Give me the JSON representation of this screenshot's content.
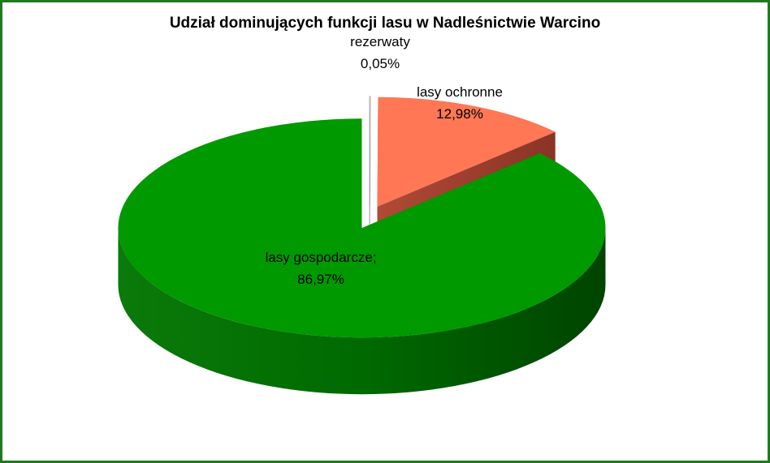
{
  "chart_data": {
    "type": "pie3d",
    "title": "Udział dominujących funkcji lasu w Nadleśnictwie Warcino",
    "categories": [
      "rezerwaty",
      "lasy ochronne",
      "lasy gospodarcze;"
    ],
    "values": [
      0.05,
      12.98,
      86.97
    ],
    "value_labels": [
      "0,05%",
      "12,98%",
      "86,97%"
    ],
    "colors": [
      "#ffffff",
      "#ff7755",
      "#009900"
    ]
  }
}
